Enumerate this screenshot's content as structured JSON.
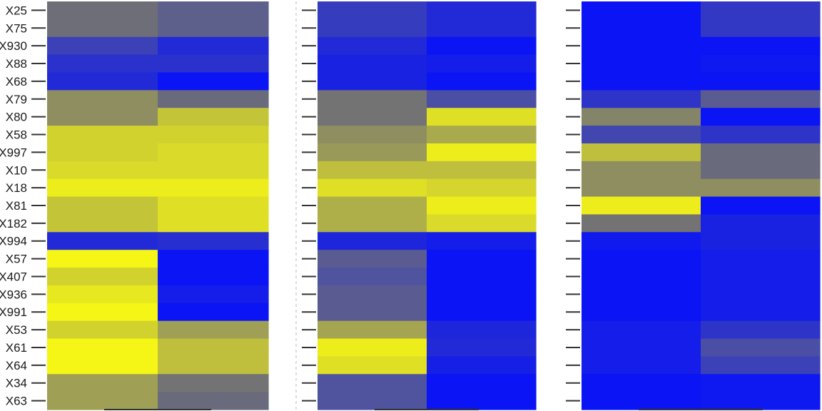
{
  "chart_data": {
    "type": "heatmap",
    "title": "",
    "xlabel": "",
    "ylabel": "",
    "rows": [
      "X25",
      "X75",
      "X930",
      "X88",
      "X68",
      "X79",
      "X80",
      "X58",
      "X997",
      "X10",
      "X18",
      "X81",
      "X182",
      "X994",
      "X57",
      "X407",
      "X936",
      "X991",
      "X53",
      "X61",
      "X64",
      "X34",
      "X63"
    ],
    "color_scale": {
      "low": "#0a14f5",
      "mid": "#6e6e78",
      "high": "#f5f516",
      "range": [
        0,
        1
      ]
    },
    "panels": [
      {
        "columns": 2,
        "values": [
          [
            0.5,
            0.42
          ],
          [
            0.5,
            0.42
          ],
          [
            0.25,
            0.12
          ],
          [
            0.16,
            0.16
          ],
          [
            0.12,
            0.0
          ],
          [
            0.62,
            0.48
          ],
          [
            0.62,
            0.82
          ],
          [
            0.87,
            0.87
          ],
          [
            0.87,
            0.9
          ],
          [
            0.9,
            0.9
          ],
          [
            0.97,
            0.97
          ],
          [
            0.82,
            0.92
          ],
          [
            0.82,
            0.92
          ],
          [
            0.12,
            0.15
          ],
          [
            1.0,
            0.0
          ],
          [
            0.87,
            0.0
          ],
          [
            0.95,
            0.05
          ],
          [
            1.0,
            0.0
          ],
          [
            0.87,
            0.68
          ],
          [
            1.0,
            0.8
          ],
          [
            1.0,
            0.8
          ],
          [
            0.68,
            0.52
          ],
          [
            0.68,
            0.48
          ]
        ]
      },
      {
        "columns": 2,
        "values": [
          [
            0.22,
            0.12
          ],
          [
            0.22,
            0.12
          ],
          [
            0.12,
            0.0
          ],
          [
            0.08,
            0.05
          ],
          [
            0.08,
            0.0
          ],
          [
            0.52,
            0.32
          ],
          [
            0.52,
            0.92
          ],
          [
            0.62,
            0.72
          ],
          [
            0.66,
            0.97
          ],
          [
            0.8,
            0.8
          ],
          [
            0.92,
            0.88
          ],
          [
            0.74,
            0.97
          ],
          [
            0.74,
            0.9
          ],
          [
            0.1,
            0.05
          ],
          [
            0.4,
            0.0
          ],
          [
            0.35,
            0.0
          ],
          [
            0.4,
            0.0
          ],
          [
            0.4,
            0.0
          ],
          [
            0.7,
            0.1
          ],
          [
            0.97,
            0.12
          ],
          [
            0.92,
            0.06
          ],
          [
            0.35,
            0.0
          ],
          [
            0.35,
            0.0
          ]
        ]
      },
      {
        "columns": 2,
        "values": [
          [
            0.0,
            0.2
          ],
          [
            0.0,
            0.2
          ],
          [
            0.0,
            0.0
          ],
          [
            0.0,
            0.02
          ],
          [
            0.0,
            0.0
          ],
          [
            0.18,
            0.4
          ],
          [
            0.58,
            0.0
          ],
          [
            0.28,
            0.18
          ],
          [
            0.8,
            0.48
          ],
          [
            0.62,
            0.48
          ],
          [
            0.62,
            0.62
          ],
          [
            0.97,
            0.0
          ],
          [
            0.52,
            0.08
          ],
          [
            0.03,
            0.08
          ],
          [
            0.0,
            0.05
          ],
          [
            0.0,
            0.05
          ],
          [
            0.0,
            0.05
          ],
          [
            0.0,
            0.05
          ],
          [
            0.05,
            0.18
          ],
          [
            0.05,
            0.32
          ],
          [
            0.05,
            0.25
          ],
          [
            0.0,
            0.02
          ],
          [
            0.0,
            0.02
          ]
        ]
      }
    ]
  }
}
